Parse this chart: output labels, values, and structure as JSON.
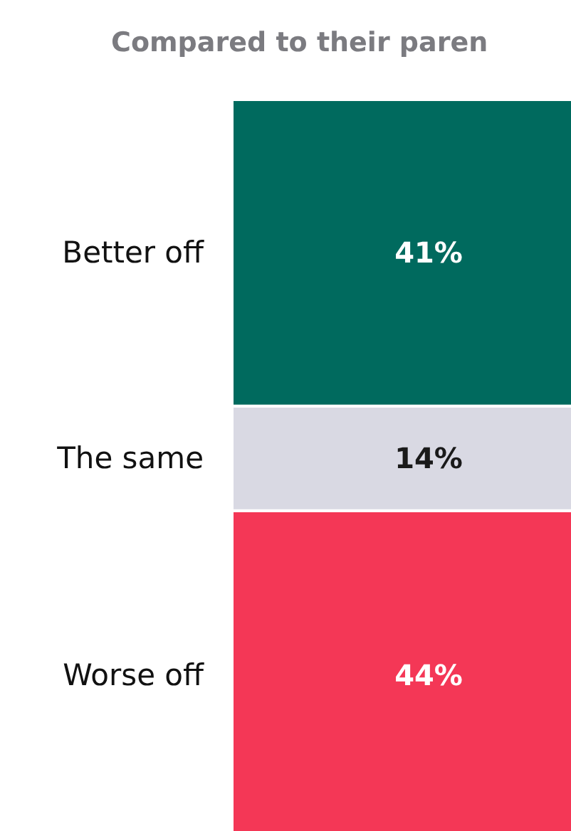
{
  "chart_data": {
    "type": "bar",
    "stacked": true,
    "title": "Compared to their paren",
    "categories": [
      null
    ],
    "series": [
      {
        "name": "Worse off",
        "color": "#f43756",
        "values": [
          44
        ],
        "value_labels": [
          "44%"
        ]
      },
      {
        "name": "The same",
        "color": "#d9d9e3",
        "values": [
          14
        ],
        "value_labels": [
          "14%"
        ]
      },
      {
        "name": "Better off",
        "color": "#006a5e",
        "values": [
          41
        ],
        "value_labels": [
          "41%"
        ]
      }
    ]
  }
}
